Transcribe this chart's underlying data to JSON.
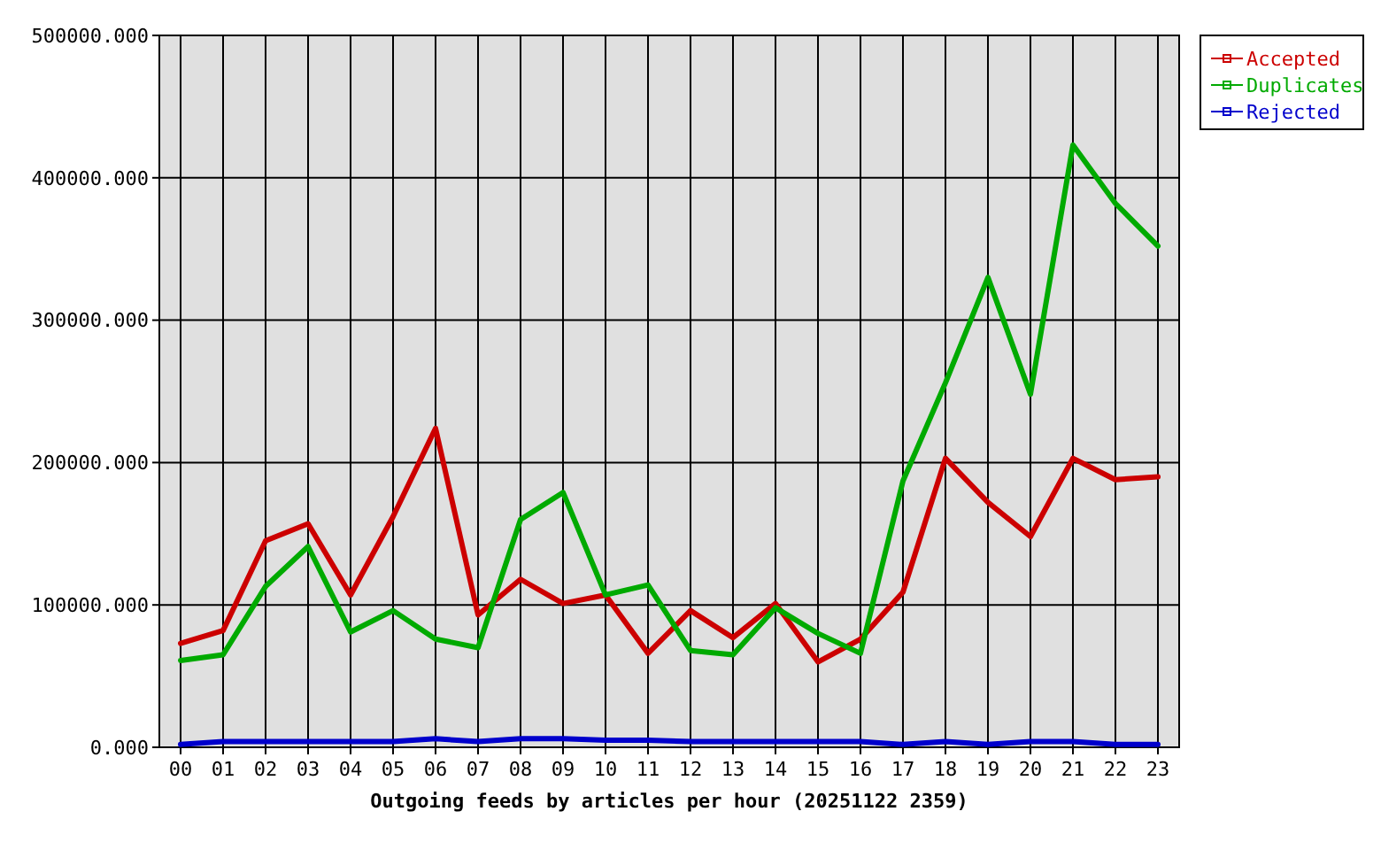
{
  "chart_data": {
    "type": "line",
    "xlabel": "Outgoing feeds by articles per hour (20251122 2359)",
    "categories": [
      "00",
      "01",
      "02",
      "03",
      "04",
      "05",
      "06",
      "07",
      "08",
      "09",
      "10",
      "11",
      "12",
      "13",
      "14",
      "15",
      "16",
      "17",
      "18",
      "19",
      "20",
      "21",
      "22",
      "23"
    ],
    "series": [
      {
        "name": "Accepted",
        "color": "#cc0000",
        "values": [
          73000,
          82000,
          145000,
          157000,
          107000,
          162000,
          224000,
          93000,
          118000,
          101000,
          107000,
          66000,
          96000,
          77000,
          101000,
          60000,
          76000,
          109000,
          203000,
          172000,
          148000,
          203000,
          188000,
          190000
        ]
      },
      {
        "name": "Duplicates",
        "color": "#00aa00",
        "values": [
          61000,
          65000,
          113000,
          141000,
          81000,
          96000,
          76000,
          70000,
          160000,
          179000,
          107000,
          114000,
          68000,
          65000,
          98000,
          80000,
          66000,
          187000,
          256000,
          330000,
          248000,
          423000,
          382000,
          352000
        ]
      },
      {
        "name": "Rejected",
        "color": "#0000cc",
        "values": [
          2000,
          4000,
          4000,
          4000,
          4000,
          4000,
          6000,
          4000,
          6000,
          6000,
          5000,
          5000,
          4000,
          4000,
          4000,
          4000,
          4000,
          2000,
          4000,
          2000,
          4000,
          4000,
          2000,
          2000
        ]
      }
    ],
    "ylim": [
      0,
      500000
    ],
    "yticks": [
      {
        "value": 0,
        "label": "0.000"
      },
      {
        "value": 100000,
        "label": "100000.000"
      },
      {
        "value": 200000,
        "label": "200000.000"
      },
      {
        "value": 300000,
        "label": "300000.000"
      },
      {
        "value": 400000,
        "label": "400000.000"
      },
      {
        "value": 500000,
        "label": "500000.000"
      }
    ],
    "grid": true,
    "legend": "top right",
    "marker": "none",
    "line_style": "solid"
  }
}
